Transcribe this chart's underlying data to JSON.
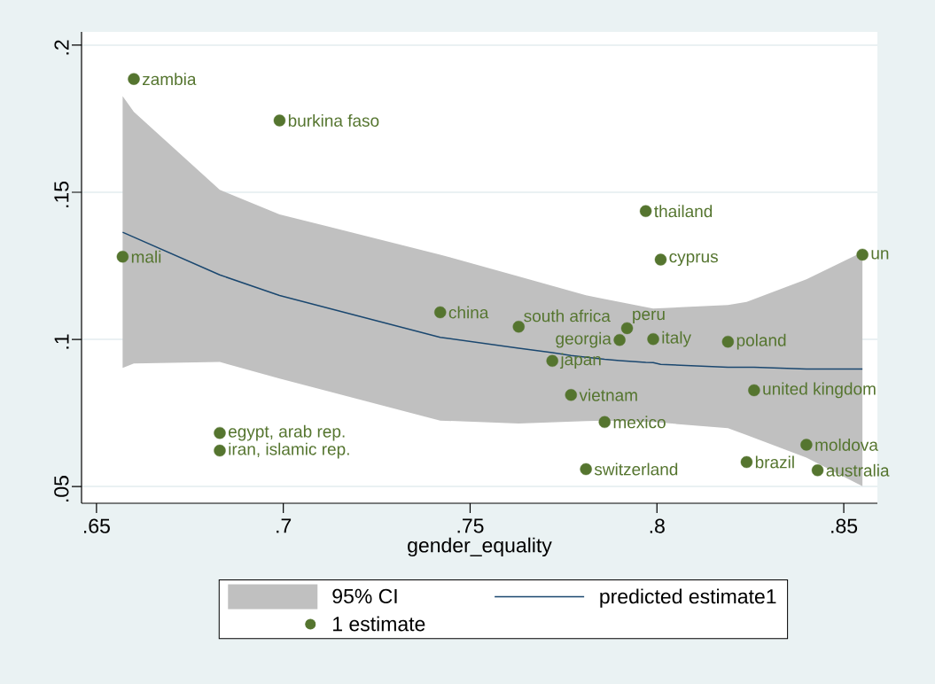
{
  "chart_data": {
    "type": "scatter",
    "xlabel": "gender_equality",
    "xlim": [
      0.646,
      0.859
    ],
    "ylim": [
      0.0443,
      0.2045
    ],
    "xticks": [
      {
        "value": 0.65,
        "label": ".65"
      },
      {
        "value": 0.7,
        "label": ".7"
      },
      {
        "value": 0.75,
        "label": ".75"
      },
      {
        "value": 0.8,
        "label": ".8"
      },
      {
        "value": 0.85,
        "label": ".85"
      }
    ],
    "yticks": [
      {
        "value": 0.05,
        "label": ".05"
      },
      {
        "value": 0.1,
        "label": ".1"
      },
      {
        "value": 0.15,
        "label": ".15"
      },
      {
        "value": 0.2,
        "label": ".2"
      }
    ],
    "grid": "y",
    "legend": "bottom",
    "series": [
      {
        "name": "95% CI",
        "type": "area",
        "color": "#c0c0c0",
        "x": [
          0.657,
          0.66,
          0.683,
          0.699,
          0.742,
          0.763,
          0.781,
          0.786,
          0.799,
          0.819,
          0.824,
          0.84,
          0.855
        ],
        "values": [
          null,
          null,
          null,
          null,
          null,
          null,
          null,
          null,
          null,
          null,
          null,
          null,
          null
        ],
        "lower": [
          0.0903,
          0.0918,
          0.0923,
          0.0867,
          0.0724,
          0.0714,
          0.0722,
          0.0724,
          0.0719,
          0.0698,
          0.0675,
          0.0598,
          0.0501
        ],
        "upper": [
          0.1827,
          0.1773,
          0.1508,
          0.1425,
          0.1288,
          0.1214,
          0.115,
          0.1137,
          0.1105,
          0.1117,
          0.1127,
          0.1204,
          0.1297
        ]
      },
      {
        "name": "predicted estimate1",
        "type": "line",
        "color": "#1a476f",
        "marker": "none",
        "line_style": "solid",
        "x": [
          0.657,
          0.683,
          0.699,
          0.742,
          0.763,
          0.772,
          0.777,
          0.786,
          0.79,
          0.797,
          0.799,
          0.801,
          0.819,
          0.826,
          0.84,
          0.855
        ],
        "values": [
          0.1364,
          0.1219,
          0.1149,
          0.1007,
          0.097,
          0.0955,
          0.0945,
          0.0932,
          0.0928,
          0.0922,
          0.0921,
          0.0915,
          0.0905,
          0.0905,
          0.0899,
          0.0899
        ]
      },
      {
        "name": "1 estimate",
        "type": "scatter",
        "color": "#55752f",
        "marker": "circle",
        "x": [
          0.657,
          0.66,
          0.683,
          0.683,
          0.699,
          0.742,
          0.763,
          0.772,
          0.777,
          0.781,
          0.786,
          0.79,
          0.792,
          0.797,
          0.799,
          0.801,
          0.819,
          0.824,
          0.826,
          0.84,
          0.843,
          0.855
        ],
        "values": [
          0.1281,
          0.1885,
          0.0682,
          0.0622,
          0.1744,
          0.1092,
          0.1043,
          0.0927,
          0.0811,
          0.0559,
          0.0719,
          0.0998,
          0.1038,
          0.1436,
          0.1001,
          0.1271,
          0.0992,
          0.0583,
          0.0827,
          0.0642,
          0.0555,
          0.1288
        ],
        "value_labels": [
          "mali",
          "zambia",
          "egypt, arab rep.",
          "iran, islamic rep.",
          "burkina faso",
          "china",
          "south africa",
          "japan",
          "vietnam",
          "switzerland",
          "mexico",
          "georgia",
          "peru",
          "thailand",
          "italy",
          "cyprus",
          "poland",
          "brazil",
          "united kingdom",
          "moldova",
          "australia",
          "un"
        ]
      }
    ]
  }
}
